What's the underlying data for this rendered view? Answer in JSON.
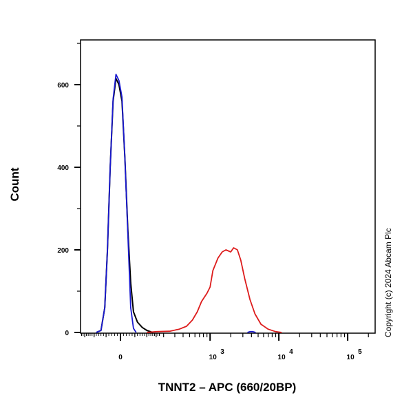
{
  "chart_data": {
    "type": "line",
    "title": "",
    "xlabel": "TNNT2 – APC (660/20BP)",
    "ylabel": "Count",
    "x_scale": "biexponential",
    "xlim": [
      -177,
      250000
    ],
    "ylim": [
      0,
      708
    ],
    "x_ticks": [
      {
        "value": 0,
        "label": "0"
      },
      {
        "value": 1000,
        "label": "10",
        "exp": "3"
      },
      {
        "value": 10000,
        "label": "10",
        "exp": "4"
      },
      {
        "value": 100000,
        "label": "10",
        "exp": "5"
      }
    ],
    "y_ticks": [
      0,
      200,
      400,
      600
    ],
    "grid": false,
    "series": [
      {
        "color": "#000000",
        "x": [
          -90,
          -70,
          -55,
          -45,
          -35,
          -25,
          -15,
          -5,
          5,
          15,
          25,
          35,
          45,
          60,
          80,
          100,
          130
        ],
        "y": [
          0,
          5,
          60,
          200,
          400,
          560,
          615,
          600,
          560,
          420,
          250,
          120,
          50,
          25,
          12,
          5,
          0
        ]
      },
      {
        "color": "#1a1ad0",
        "x": [
          -90,
          -70,
          -55,
          -45,
          -35,
          -25,
          -15,
          -5,
          5,
          15,
          25,
          35,
          45,
          55
        ],
        "y": [
          0,
          5,
          60,
          200,
          400,
          565,
          625,
          610,
          570,
          420,
          240,
          60,
          10,
          0
        ]
      },
      {
        "color": "#1a1ad0",
        "x": [
          3500,
          3800,
          4200,
          4600
        ],
        "y": [
          0,
          2,
          2,
          0
        ]
      },
      {
        "color": "#dd1c1c",
        "x": [
          100,
          150,
          250,
          350,
          450,
          550,
          650,
          750,
          900,
          1000,
          1100,
          1300,
          1500,
          1700,
          2000,
          2200,
          2500,
          2800,
          3200,
          3800,
          4500,
          5500,
          7000,
          9000,
          11000
        ],
        "y": [
          0,
          2,
          3,
          8,
          15,
          30,
          50,
          75,
          95,
          110,
          150,
          180,
          195,
          200,
          195,
          205,
          200,
          175,
          130,
          80,
          45,
          20,
          8,
          2,
          0
        ]
      }
    ]
  },
  "copyright": "Copyright (c) 2024 Abcam Plc"
}
